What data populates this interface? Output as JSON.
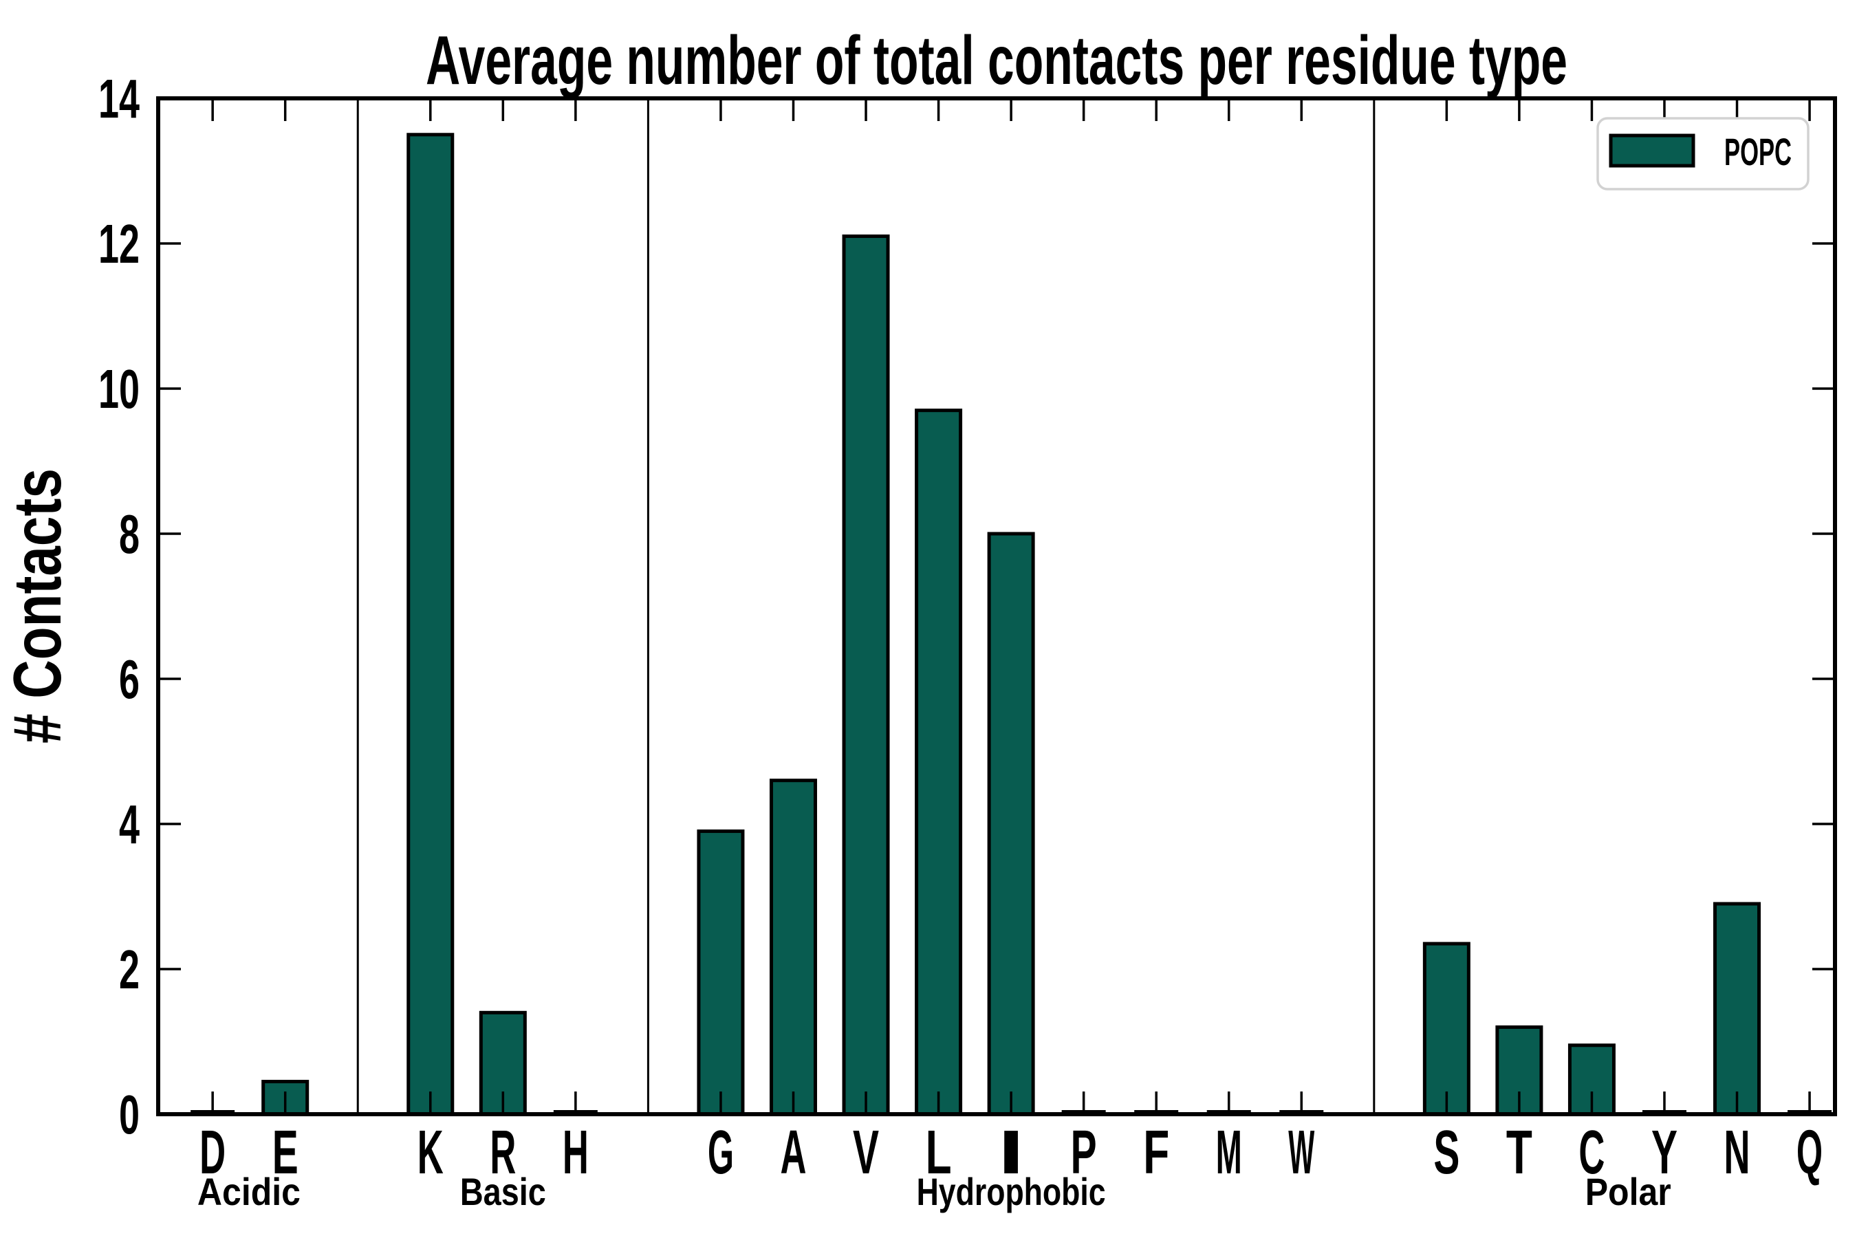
{
  "chart_data": {
    "type": "bar",
    "title": "Average number of total contacts per residue type",
    "ylabel": "# Contacts",
    "xlabel": "",
    "ylim": [
      0,
      14
    ],
    "yticks": [
      0,
      2,
      4,
      6,
      8,
      10,
      12,
      14
    ],
    "grid": false,
    "legend": {
      "entries": [
        "POPC"
      ],
      "position": "upper right"
    },
    "bar_fill": "#085C50",
    "bar_edge": "#000000",
    "axis_color": "#000000",
    "legend_border_color": "#D2D2D2",
    "background_color": "#FFFFFF",
    "groups": [
      {
        "label": "Acidic",
        "categories": [
          "D",
          "E"
        ],
        "values": [
          0,
          0.45
        ]
      },
      {
        "label": "Basic",
        "categories": [
          "K",
          "R",
          "H"
        ],
        "values": [
          13.5,
          1.4,
          0
        ]
      },
      {
        "label": "Hydrophobic",
        "categories": [
          "G",
          "A",
          "V",
          "L",
          "I",
          "P",
          "F",
          "M",
          "W"
        ],
        "values": [
          3.9,
          4.6,
          12.1,
          9.7,
          8.0,
          0,
          0,
          0,
          0
        ]
      },
      {
        "label": "Polar",
        "categories": [
          "S",
          "T",
          "C",
          "Y",
          "N",
          "Q"
        ],
        "values": [
          2.35,
          1.2,
          0.95,
          0,
          2.9,
          0
        ]
      }
    ]
  }
}
